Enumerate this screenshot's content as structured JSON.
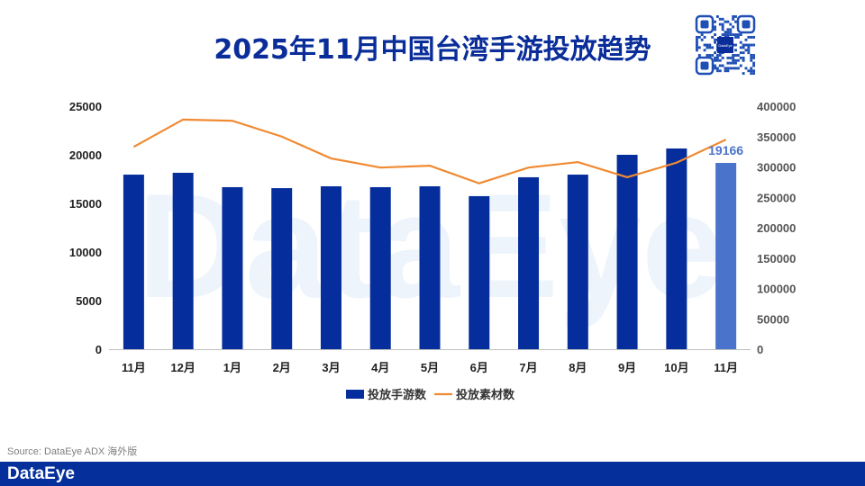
{
  "title": "2025年11月中国台湾手游投放趋势",
  "source": "Source: DataEye ADX 海外版",
  "footer_logo": "DataEye",
  "watermark": "DataEye",
  "qr_logo": "DataEye",
  "colors": {
    "bar": "#052e9c",
    "bar_highlight": "#4a74cc",
    "line": "#f08a32",
    "title": "#0a2d99",
    "footer": "#05309c"
  },
  "chart_data": {
    "type": "bar+line",
    "categories": [
      "11月",
      "12月",
      "1月",
      "2月",
      "3月",
      "4月",
      "5月",
      "6月",
      "7月",
      "8月",
      "9月",
      "10月",
      "11月"
    ],
    "series": [
      {
        "name": "投放手游数",
        "type": "bar",
        "axis": "left",
        "values": [
          17960,
          18150,
          16670,
          16570,
          16760,
          16670,
          16760,
          15740,
          17690,
          17960,
          20000,
          20650,
          19166
        ]
      },
      {
        "name": "投放素材数",
        "type": "line",
        "axis": "right",
        "values": [
          333000,
          378000,
          376000,
          350000,
          314000,
          299000,
          302000,
          273000,
          299000,
          308000,
          283000,
          307000,
          345000
        ]
      }
    ],
    "data_labels": [
      {
        "index": 12,
        "text": "19166"
      }
    ],
    "y_left": {
      "min": 0,
      "max": 25000,
      "ticks": [
        "0",
        "5000",
        "10000",
        "15000",
        "20000",
        "25000"
      ]
    },
    "y_right": {
      "min": 0,
      "max": 400000,
      "ticks": [
        "0",
        "50000",
        "100000",
        "150000",
        "200000",
        "250000",
        "300000",
        "350000",
        "400000"
      ]
    },
    "grid": false,
    "legend": "bottom"
  }
}
